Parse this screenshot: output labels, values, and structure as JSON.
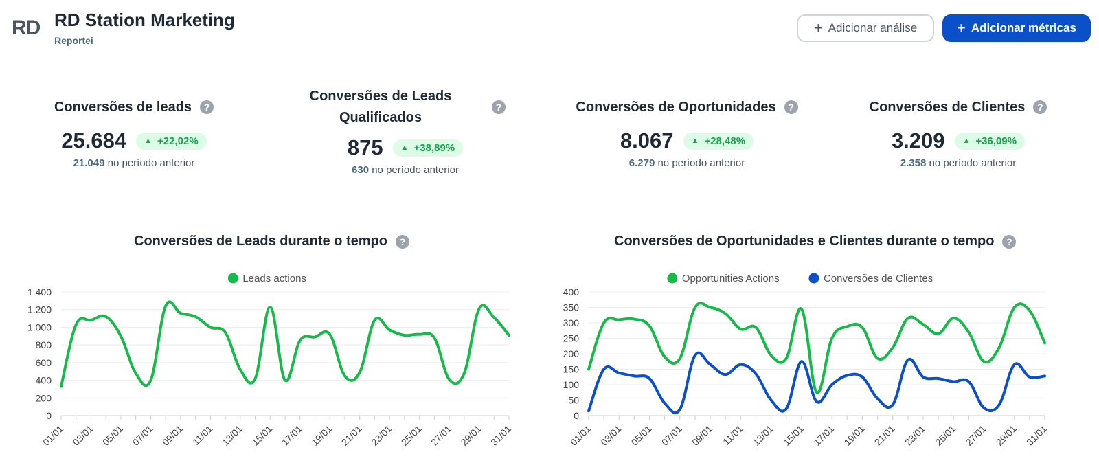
{
  "header": {
    "logo": "RD",
    "title": "RD Station Marketing",
    "subtitle": "Reportei",
    "add_analysis_label": "Adicionar análise",
    "add_metrics_label": "Adicionar métricas"
  },
  "kpis": [
    {
      "title": "Conversões de leads",
      "value": "25.684",
      "change": "+22,02%",
      "prev_value": "21.049",
      "prev_label": "no período anterior"
    },
    {
      "title": "Conversões de Leads Qualificados",
      "value": "875",
      "change": "+38,89%",
      "prev_value": "630",
      "prev_label": "no período anterior"
    },
    {
      "title": "Conversões de Oportunidades",
      "value": "8.067",
      "change": "+28,48%",
      "prev_value": "6.279",
      "prev_label": "no período anterior"
    },
    {
      "title": "Conversões de Clientes",
      "value": "3.209",
      "change": "+36,09%",
      "prev_value": "2.358",
      "prev_label": "no período anterior"
    }
  ],
  "help_symbol": "?",
  "colors": {
    "green": "#17b94a",
    "blue": "#0b4fc9",
    "accent": "#0b4fc9",
    "badge_bg": "#dcfce7"
  },
  "chart_data": [
    {
      "type": "line",
      "title": "Conversões de Leads durante o tempo",
      "x": [
        "01/01",
        "02/01",
        "03/01",
        "04/01",
        "05/01",
        "06/01",
        "07/01",
        "08/01",
        "09/01",
        "10/01",
        "11/01",
        "12/01",
        "13/01",
        "14/01",
        "15/01",
        "16/01",
        "17/01",
        "18/01",
        "19/01",
        "20/01",
        "21/01",
        "22/01",
        "23/01",
        "24/01",
        "25/01",
        "26/01",
        "27/01",
        "28/01",
        "29/01",
        "30/01",
        "31/01"
      ],
      "x_tick_labels": [
        "01/01",
        "03/01",
        "05/01",
        "07/01",
        "09/01",
        "11/01",
        "13/01",
        "15/01",
        "17/01",
        "19/01",
        "21/01",
        "23/01",
        "25/01",
        "27/01",
        "29/01",
        "31/01"
      ],
      "series": [
        {
          "name": "Leads actions",
          "color": "#17b94a",
          "values": [
            330,
            1030,
            1080,
            1120,
            900,
            480,
            400,
            1240,
            1160,
            1120,
            1000,
            940,
            520,
            420,
            1230,
            400,
            850,
            890,
            920,
            450,
            490,
            1080,
            970,
            910,
            920,
            880,
            410,
            480,
            1210,
            1110,
            910
          ]
        }
      ],
      "ylim": [
        0,
        1400
      ],
      "yticks": [
        0,
        200,
        400,
        600,
        800,
        1000,
        1200,
        1400
      ],
      "ytick_labels": [
        "0",
        "200",
        "400",
        "600",
        "800",
        "1.000",
        "1.200",
        "1.400"
      ],
      "legend": "top-center",
      "grid": true
    },
    {
      "type": "line",
      "title": "Conversões de Oportunidades e Clientes durante o tempo",
      "x": [
        "01/01",
        "02/01",
        "03/01",
        "04/01",
        "05/01",
        "06/01",
        "07/01",
        "08/01",
        "09/01",
        "10/01",
        "11/01",
        "12/01",
        "13/01",
        "14/01",
        "15/01",
        "16/01",
        "17/01",
        "18/01",
        "19/01",
        "20/01",
        "21/01",
        "22/01",
        "23/01",
        "24/01",
        "25/01",
        "26/01",
        "27/01",
        "28/01",
        "29/01",
        "30/01",
        "31/01"
      ],
      "x_tick_labels": [
        "01/01",
        "03/01",
        "05/01",
        "07/01",
        "09/01",
        "11/01",
        "13/01",
        "15/01",
        "17/01",
        "19/01",
        "21/01",
        "23/01",
        "25/01",
        "27/01",
        "29/01",
        "31/01"
      ],
      "series": [
        {
          "name": "Opportunities Actions",
          "color": "#17b94a",
          "values": [
            150,
            300,
            310,
            312,
            290,
            190,
            185,
            350,
            350,
            330,
            280,
            285,
            195,
            185,
            345,
            75,
            250,
            288,
            285,
            185,
            220,
            315,
            295,
            265,
            315,
            270,
            175,
            220,
            350,
            340,
            235
          ]
        },
        {
          "name": "Conversões de Clientes",
          "color": "#0b4fc9",
          "values": [
            15,
            150,
            138,
            128,
            120,
            40,
            20,
            195,
            165,
            133,
            165,
            135,
            50,
            22,
            175,
            45,
            100,
            130,
            125,
            55,
            35,
            180,
            125,
            120,
            110,
            110,
            25,
            35,
            165,
            125,
            128
          ]
        }
      ],
      "ylim": [
        0,
        400
      ],
      "yticks": [
        0,
        50,
        100,
        150,
        200,
        250,
        300,
        350,
        400
      ],
      "ytick_labels": [
        "0",
        "50",
        "100",
        "150",
        "200",
        "250",
        "300",
        "350",
        "400"
      ],
      "legend": "top-center",
      "grid": true
    }
  ]
}
